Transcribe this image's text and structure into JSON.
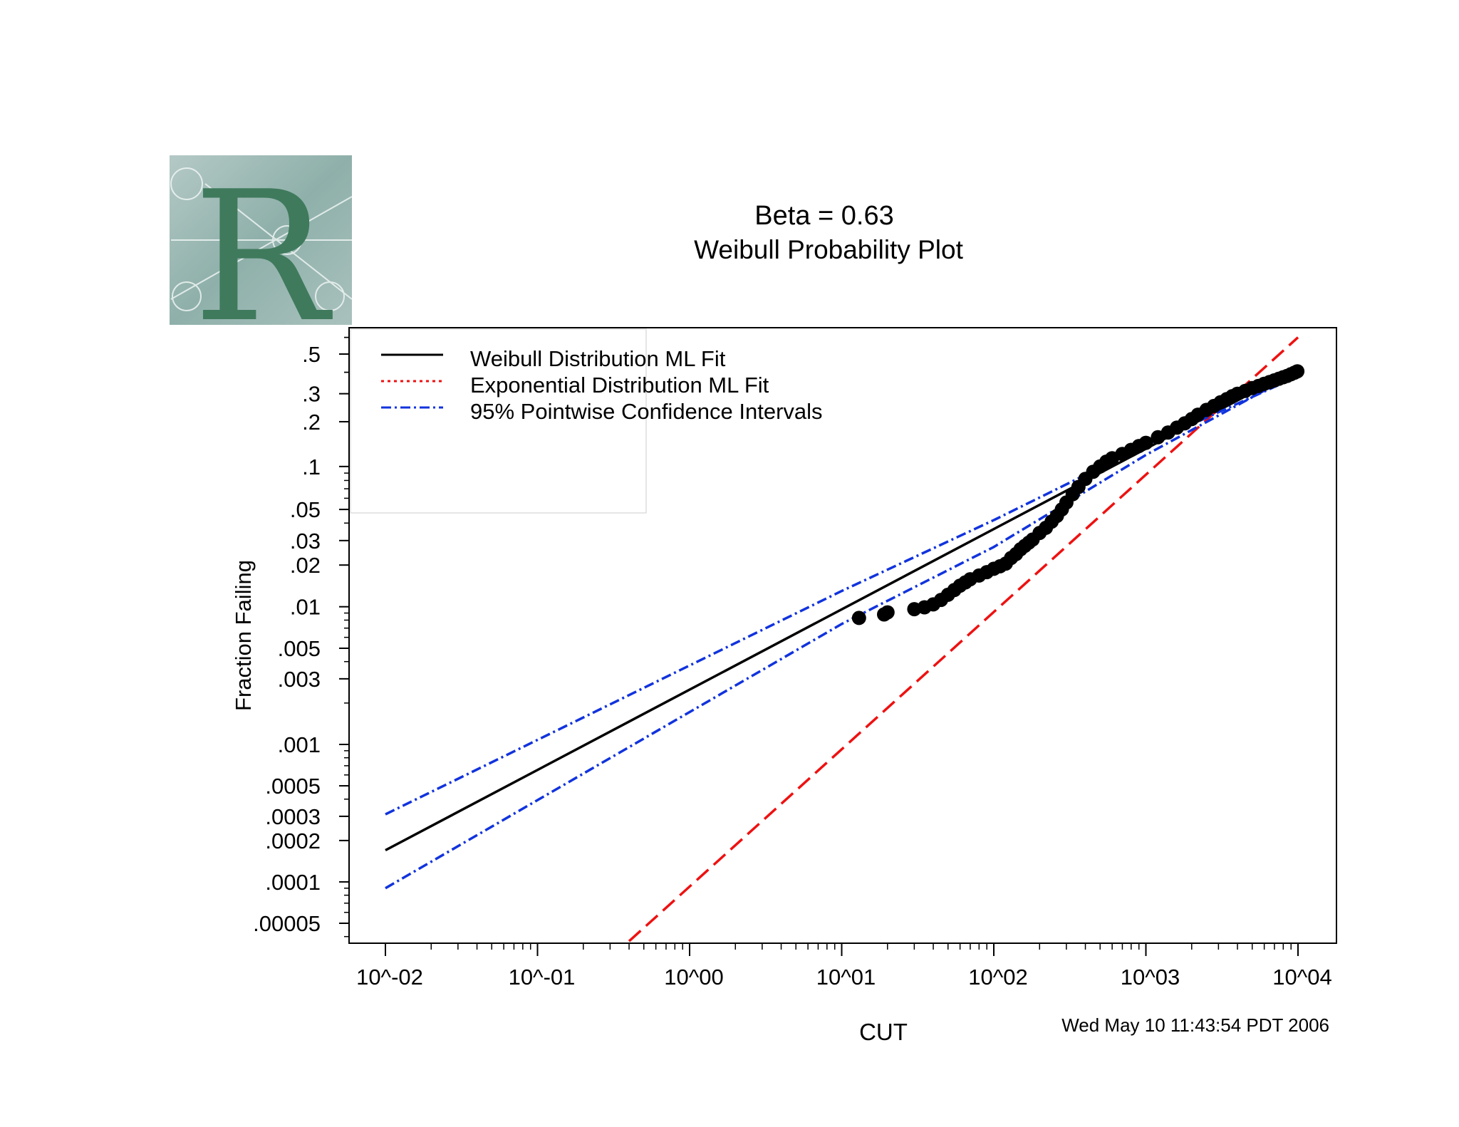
{
  "logo": {
    "letter": "R"
  },
  "chart_data": {
    "type": "scatter",
    "title": "Beta = 0.63",
    "subtitle": "Weibull Probability Plot",
    "xlabel": "CUT",
    "ylabel": "Fraction Failing",
    "xscale": "log",
    "yscale": "weibull",
    "xlim": [
      0.01,
      10000
    ],
    "ylim": [
      4e-05,
      0.6
    ],
    "x_tick_values": [
      0.01,
      0.1,
      1,
      10,
      100,
      1000,
      10000
    ],
    "x_tick_labels": [
      "10^-02",
      "10^-01",
      "10^00",
      "10^01",
      "10^02",
      "10^03",
      "10^04"
    ],
    "y_tick_values": [
      0.5,
      0.3,
      0.2,
      0.1,
      0.05,
      0.03,
      0.02,
      0.01,
      0.005,
      0.003,
      0.001,
      0.0005,
      0.0003,
      0.0002,
      0.0001,
      5e-05
    ],
    "y_tick_labels": [
      ".5",
      ".3",
      ".2",
      ".1",
      ".05",
      ".03",
      ".02",
      ".01",
      ".005",
      ".003",
      ".001",
      ".0005",
      ".0003",
      ".0002",
      ".0001",
      ".00005"
    ],
    "legend": {
      "position": "top-left",
      "entries": [
        {
          "label": "Weibull Distribution ML Fit",
          "color": "#000000",
          "style": "solid"
        },
        {
          "label": "Exponential Distribution ML Fit",
          "color": "#ee1111",
          "style": "dotted"
        },
        {
          "label": "95% Pointwise Confidence Intervals",
          "color": "#1133dd",
          "style": "dashdot"
        }
      ]
    },
    "series": [
      {
        "name": "Weibull Distribution ML Fit",
        "kind": "line",
        "color": "#000000",
        "x": [
          0.01,
          10000
        ],
        "y": [
          0.00017,
          0.42
        ]
      },
      {
        "name": "Exponential Distribution ML Fit",
        "kind": "line",
        "color": "#ee1111",
        "x": [
          0.4,
          10000
        ],
        "y": [
          3.7e-05,
          0.6
        ]
      },
      {
        "name": "95% Pointwise Confidence Intervals (upper)",
        "kind": "line",
        "color": "#1133dd",
        "x": [
          0.01,
          10,
          100,
          1000,
          10000
        ],
        "y": [
          0.00031,
          0.013,
          0.042,
          0.14,
          0.38
        ]
      },
      {
        "name": "95% Pointwise Confidence Intervals (lower)",
        "kind": "line",
        "color": "#1133dd",
        "x": [
          0.01,
          10,
          100,
          1000,
          10000
        ],
        "y": [
          9e-05,
          0.0075,
          0.027,
          0.12,
          0.4
        ]
      },
      {
        "name": "Data (CUT)",
        "kind": "points",
        "color": "#000000",
        "x": [
          13,
          19,
          20,
          30,
          35,
          40,
          45,
          50,
          55,
          60,
          65,
          70,
          80,
          90,
          100,
          110,
          120,
          130,
          140,
          150,
          160,
          170,
          180,
          200,
          220,
          240,
          260,
          280,
          300,
          330,
          360,
          400,
          450,
          500,
          550,
          600,
          700,
          800,
          900,
          1000,
          1200,
          1400,
          1600,
          1800,
          2000,
          2200,
          2500,
          2800,
          3100,
          3400,
          3700,
          4000,
          4500,
          5000,
          5500,
          6000,
          6500,
          7000,
          7500,
          8000,
          8500,
          9000,
          9500,
          9900
        ],
        "y": [
          0.0083,
          0.0088,
          0.0091,
          0.0096,
          0.0099,
          0.0104,
          0.0112,
          0.0122,
          0.0132,
          0.0142,
          0.015,
          0.0158,
          0.0168,
          0.0178,
          0.0188,
          0.0196,
          0.0205,
          0.0225,
          0.024,
          0.026,
          0.0275,
          0.029,
          0.0305,
          0.034,
          0.037,
          0.041,
          0.045,
          0.05,
          0.056,
          0.064,
          0.072,
          0.082,
          0.092,
          0.1,
          0.108,
          0.114,
          0.122,
          0.13,
          0.138,
          0.145,
          0.158,
          0.17,
          0.183,
          0.195,
          0.208,
          0.222,
          0.238,
          0.252,
          0.266,
          0.278,
          0.29,
          0.3,
          0.312,
          0.324,
          0.334,
          0.344,
          0.352,
          0.36,
          0.368,
          0.375,
          0.382,
          0.39,
          0.398,
          0.405
        ]
      }
    ],
    "footer": "Wed May 10 11:43:54 PDT 2006"
  }
}
